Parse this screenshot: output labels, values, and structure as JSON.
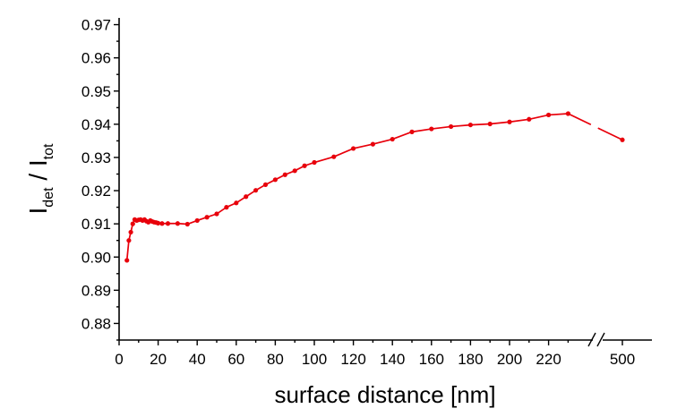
{
  "chart_data": {
    "type": "line",
    "xlabel": "surface distance [nm]",
    "ylabel_main_left": "I",
    "ylabel_sub_left": "det",
    "ylabel_sep": " / ",
    "ylabel_main_right": "I",
    "ylabel_sub_right": "tot",
    "ylim": [
      0.875,
      0.972
    ],
    "xlim": [
      0,
      255
    ],
    "x_break": true,
    "x_ticks": [
      0,
      20,
      40,
      60,
      80,
      100,
      120,
      140,
      160,
      180,
      200,
      220
    ],
    "x_ticks_after_break": [
      500
    ],
    "y_ticks": [
      0.88,
      0.89,
      0.9,
      0.91,
      0.92,
      0.93,
      0.94,
      0.95,
      0.96,
      0.97
    ],
    "y_tick_labels": [
      "0.88",
      "0.89",
      "0.90",
      "0.91",
      "0.92",
      "0.93",
      "0.94",
      "0.95",
      "0.96",
      "0.97"
    ],
    "line_color": "#e8000b",
    "grid": false,
    "series": [
      {
        "x": [
          4,
          5,
          6,
          7,
          8,
          9,
          10,
          11,
          12,
          13,
          14,
          15,
          16,
          17,
          18,
          19,
          20,
          22,
          25,
          30,
          35,
          40,
          45,
          50,
          55,
          60,
          65,
          70,
          75,
          80,
          85,
          90,
          95,
          100,
          110,
          120,
          130,
          140,
          150,
          160,
          170,
          180,
          190,
          200,
          210,
          220,
          230
        ],
        "y": [
          0.899,
          0.905,
          0.9075,
          0.91,
          0.9113,
          0.911,
          0.9112,
          0.9113,
          0.911,
          0.9113,
          0.9108,
          0.9105,
          0.911,
          0.9107,
          0.9105,
          0.9104,
          0.9102,
          0.9101,
          0.9101,
          0.9101,
          0.9099,
          0.911,
          0.912,
          0.913,
          0.915,
          0.9163,
          0.9182,
          0.9201,
          0.9218,
          0.9233,
          0.9248,
          0.926,
          0.9275,
          0.9285,
          0.9302,
          0.9327,
          0.934,
          0.9355,
          0.9377,
          0.9386,
          0.9393,
          0.9398,
          0.9401,
          0.9407,
          0.9415,
          0.9428,
          0.9432
        ]
      }
    ],
    "after_break_point": {
      "x": 500,
      "y": 0.9353
    }
  }
}
